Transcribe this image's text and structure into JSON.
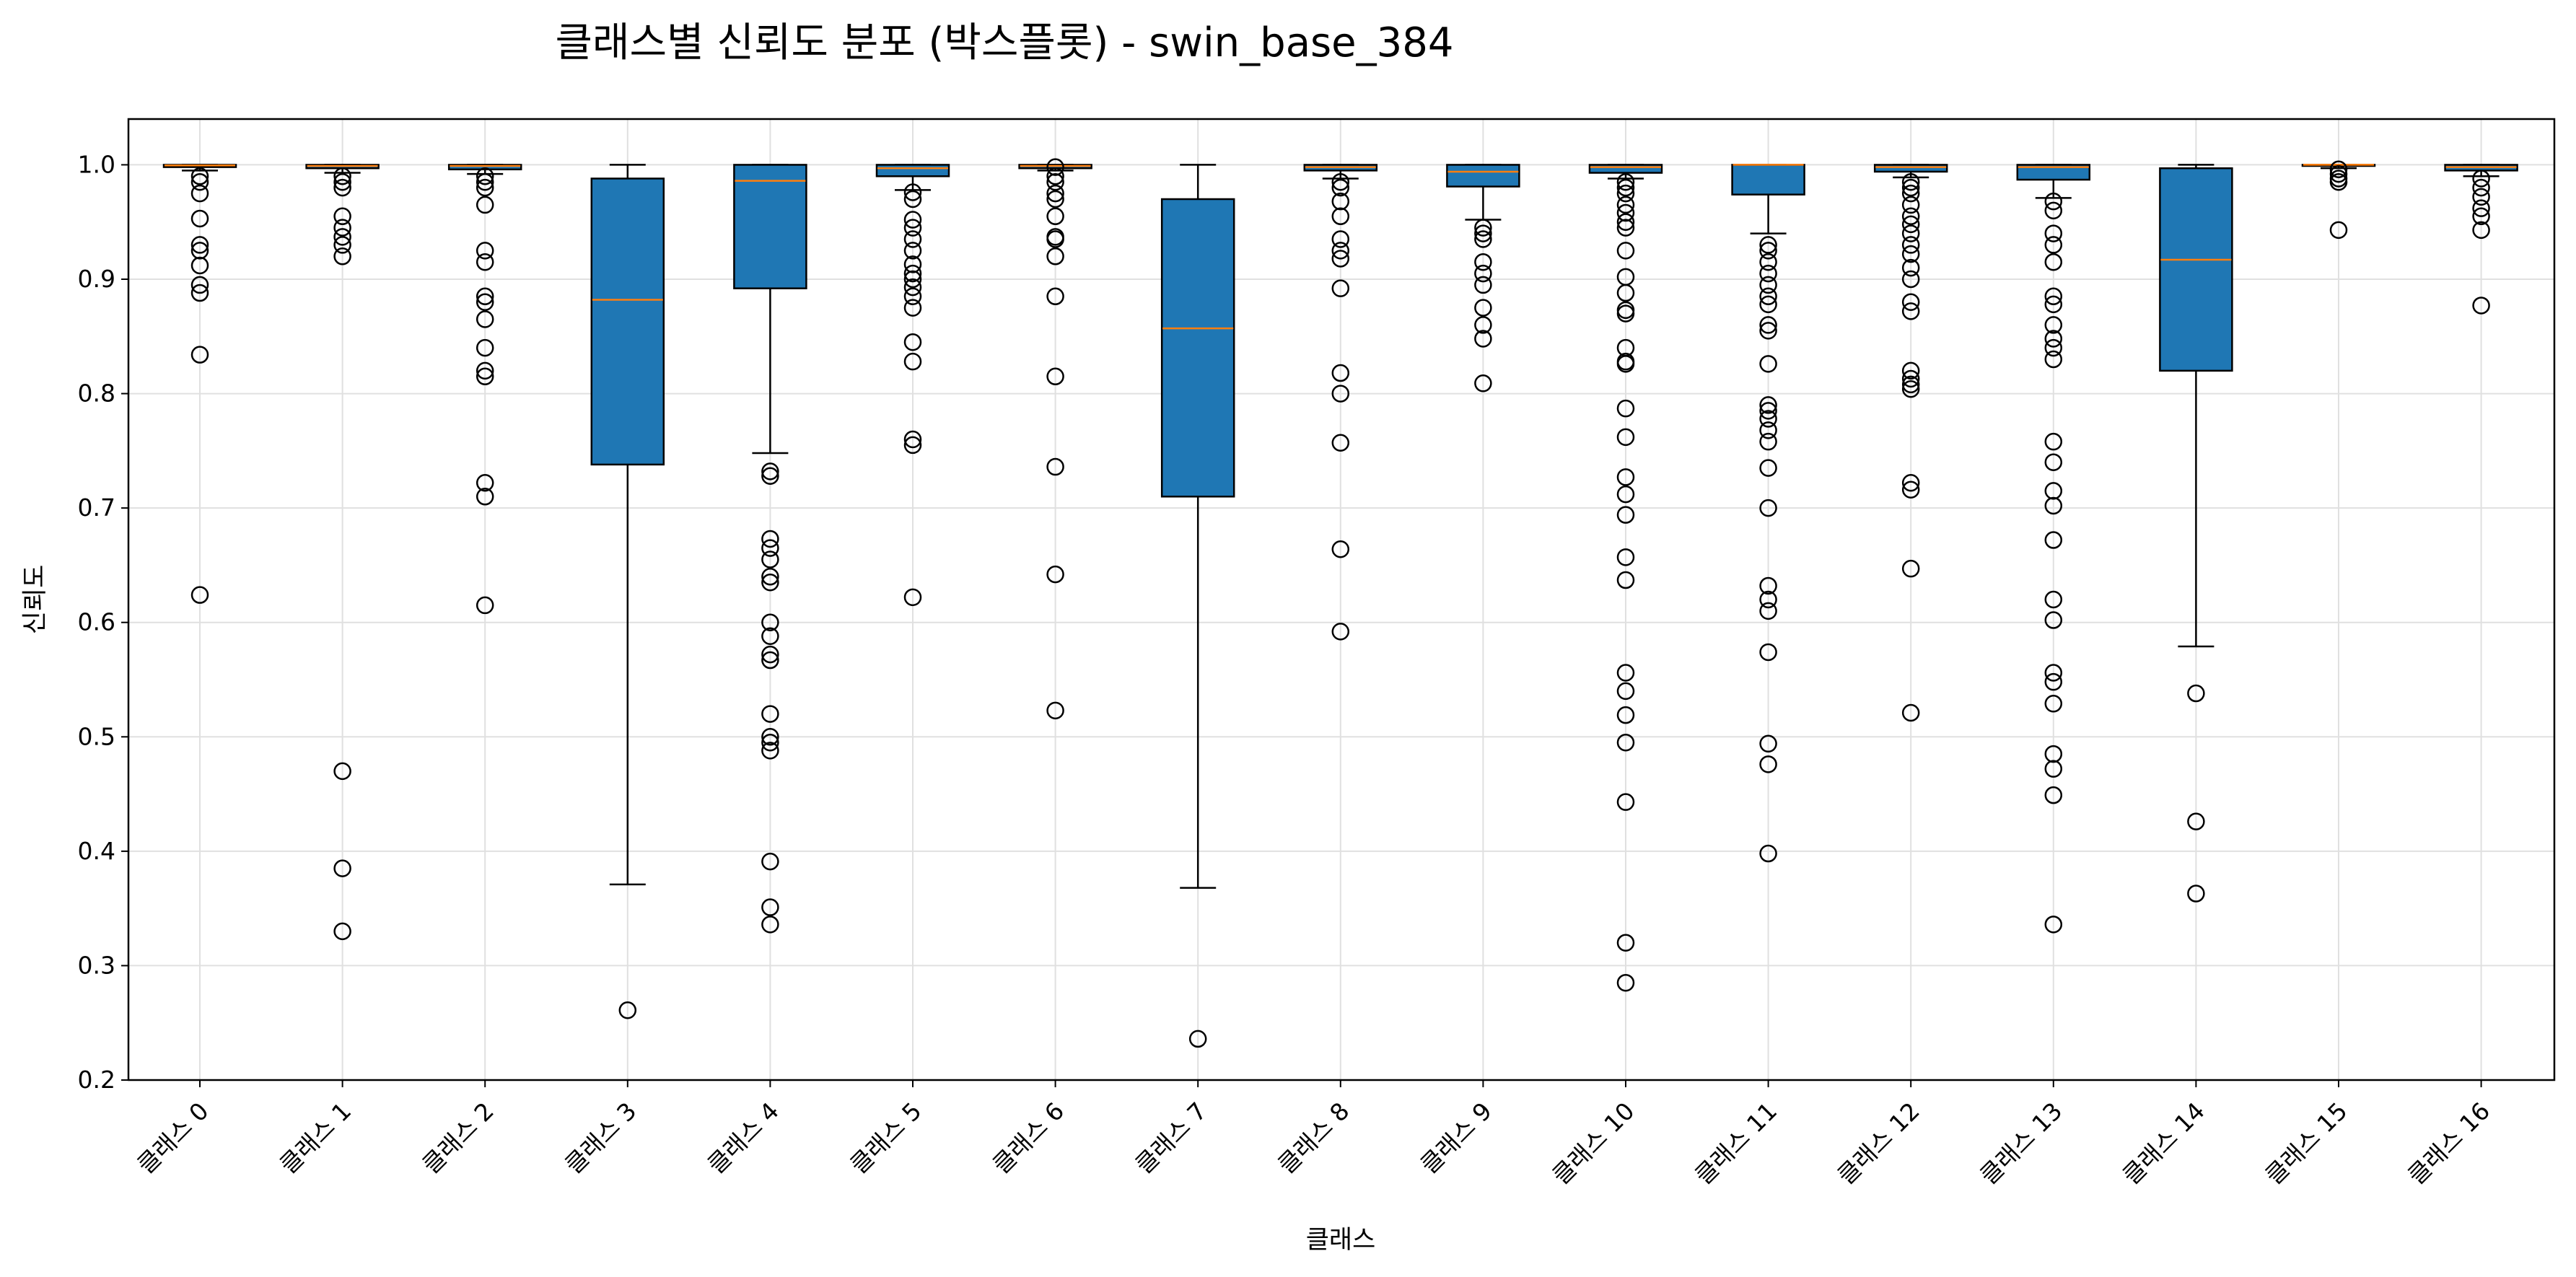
{
  "chart_data": {
    "type": "box",
    "title": "클래스별 신뢰도 분포 (박스플롯) - swin_base_384",
    "xlabel": "클래스",
    "ylabel": "신뢰도",
    "ylim": [
      0.2,
      1.04
    ],
    "yticks": [
      0.2,
      0.3,
      0.4,
      0.5,
      0.6,
      0.7,
      0.8,
      0.9,
      1.0
    ],
    "ytick_labels": [
      "0.2",
      "0.3",
      "0.4",
      "0.5",
      "0.6",
      "0.7",
      "0.8",
      "0.9",
      "1.0"
    ],
    "grid": true,
    "colors": {
      "box": "#1f77b4",
      "median": "#ff7f0e",
      "edge": "#000000",
      "grid": "#e0e0e0"
    },
    "categories": [
      "클래스 0",
      "클래스 1",
      "클래스 2",
      "클래스 3",
      "클래스 4",
      "클래스 5",
      "클래스 6",
      "클래스 7",
      "클래스 8",
      "클래스 9",
      "클래스 10",
      "클래스 11",
      "클래스 12",
      "클래스 13",
      "클래스 14",
      "클래스 15",
      "클래스 16"
    ],
    "boxes": [
      {
        "whislo": 0.995,
        "q1": 0.998,
        "med": 0.9995,
        "q3": 1.0,
        "whishi": 1.0,
        "fliers": [
          0.99,
          0.985,
          0.975,
          0.953,
          0.93,
          0.925,
          0.912,
          0.895,
          0.888,
          0.834,
          0.624
        ]
      },
      {
        "whislo": 0.993,
        "q1": 0.997,
        "med": 0.999,
        "q3": 1.0,
        "whishi": 1.0,
        "fliers": [
          0.99,
          0.985,
          0.98,
          0.955,
          0.945,
          0.937,
          0.93,
          0.92,
          0.47,
          0.385,
          0.33
        ]
      },
      {
        "whislo": 0.992,
        "q1": 0.996,
        "med": 0.999,
        "q3": 1.0,
        "whishi": 1.0,
        "fliers": [
          0.99,
          0.985,
          0.98,
          0.965,
          0.925,
          0.915,
          0.885,
          0.88,
          0.865,
          0.84,
          0.82,
          0.815,
          0.722,
          0.71,
          0.615
        ]
      },
      {
        "whislo": 0.371,
        "q1": 0.738,
        "med": 0.882,
        "q3": 0.988,
        "whishi": 1.0,
        "fliers": [
          0.261
        ]
      },
      {
        "whislo": 0.748,
        "q1": 0.892,
        "med": 0.986,
        "q3": 1.0,
        "whishi": 1.0,
        "fliers": [
          0.732,
          0.728,
          0.673,
          0.665,
          0.655,
          0.64,
          0.635,
          0.6,
          0.588,
          0.572,
          0.567,
          0.52,
          0.5,
          0.495,
          0.488,
          0.391,
          0.351,
          0.336
        ]
      },
      {
        "whislo": 0.978,
        "q1": 0.99,
        "med": 0.997,
        "q3": 1.0,
        "whishi": 1.0,
        "fliers": [
          0.976,
          0.97,
          0.952,
          0.945,
          0.935,
          0.925,
          0.913,
          0.905,
          0.9,
          0.893,
          0.885,
          0.875,
          0.845,
          0.828,
          0.76,
          0.755,
          0.622
        ]
      },
      {
        "whislo": 0.995,
        "q1": 0.997,
        "med": 0.999,
        "q3": 1.0,
        "whishi": 1.0,
        "fliers": [
          0.998,
          0.99,
          0.985,
          0.975,
          0.97,
          0.955,
          0.937,
          0.935,
          0.92,
          0.885,
          0.815,
          0.736,
          0.642,
          0.523
        ]
      },
      {
        "whislo": 0.368,
        "q1": 0.71,
        "med": 0.857,
        "q3": 0.97,
        "whishi": 1.0,
        "fliers": [
          0.236
        ]
      },
      {
        "whislo": 0.988,
        "q1": 0.995,
        "med": 0.998,
        "q3": 1.0,
        "whishi": 1.0,
        "fliers": [
          0.985,
          0.98,
          0.968,
          0.955,
          0.935,
          0.925,
          0.918,
          0.892,
          0.818,
          0.8,
          0.757,
          0.664,
          0.592
        ]
      },
      {
        "whislo": 0.952,
        "q1": 0.981,
        "med": 0.994,
        "q3": 1.0,
        "whishi": 1.0,
        "fliers": [
          0.945,
          0.94,
          0.935,
          0.915,
          0.905,
          0.895,
          0.875,
          0.86,
          0.848,
          0.809
        ]
      },
      {
        "whislo": 0.988,
        "q1": 0.993,
        "med": 0.998,
        "q3": 1.0,
        "whishi": 1.0,
        "fliers": [
          0.985,
          0.98,
          0.975,
          0.965,
          0.958,
          0.95,
          0.945,
          0.925,
          0.902,
          0.888,
          0.873,
          0.87,
          0.84,
          0.828,
          0.826,
          0.787,
          0.762,
          0.727,
          0.712,
          0.694,
          0.657,
          0.637,
          0.556,
          0.54,
          0.519,
          0.495,
          0.443,
          0.32,
          0.285
        ]
      },
      {
        "whislo": 0.94,
        "q1": 0.974,
        "med": 1.0,
        "q3": 1.0,
        "whishi": 1.0,
        "fliers": [
          0.93,
          0.925,
          0.915,
          0.905,
          0.895,
          0.885,
          0.878,
          0.86,
          0.855,
          0.826,
          0.79,
          0.785,
          0.778,
          0.768,
          0.758,
          0.735,
          0.7,
          0.632,
          0.62,
          0.61,
          0.574,
          0.494,
          0.476,
          0.398
        ]
      },
      {
        "whislo": 0.989,
        "q1": 0.994,
        "med": 0.998,
        "q3": 1.0,
        "whishi": 1.0,
        "fliers": [
          0.985,
          0.98,
          0.975,
          0.965,
          0.955,
          0.948,
          0.94,
          0.93,
          0.922,
          0.91,
          0.9,
          0.88,
          0.872,
          0.82,
          0.813,
          0.808,
          0.804,
          0.722,
          0.716,
          0.647,
          0.521
        ]
      },
      {
        "whislo": 0.971,
        "q1": 0.987,
        "med": 0.998,
        "q3": 1.0,
        "whishi": 1.0,
        "fliers": [
          0.968,
          0.96,
          0.94,
          0.93,
          0.915,
          0.885,
          0.878,
          0.86,
          0.848,
          0.84,
          0.83,
          0.758,
          0.74,
          0.715,
          0.702,
          0.672,
          0.62,
          0.602,
          0.556,
          0.548,
          0.529,
          0.485,
          0.472,
          0.449,
          0.336
        ]
      },
      {
        "whislo": 0.579,
        "q1": 0.82,
        "med": 0.917,
        "q3": 0.997,
        "whishi": 1.0,
        "fliers": [
          0.538,
          0.426,
          0.363
        ]
      },
      {
        "whislo": 0.997,
        "q1": 0.999,
        "med": 1.0,
        "q3": 1.0,
        "whishi": 1.0,
        "fliers": [
          0.996,
          0.992,
          0.988,
          0.985,
          0.943
        ]
      },
      {
        "whislo": 0.99,
        "q1": 0.995,
        "med": 0.998,
        "q3": 1.0,
        "whishi": 1.0,
        "fliers": [
          0.988,
          0.98,
          0.972,
          0.962,
          0.955,
          0.943,
          0.877
        ]
      }
    ]
  }
}
